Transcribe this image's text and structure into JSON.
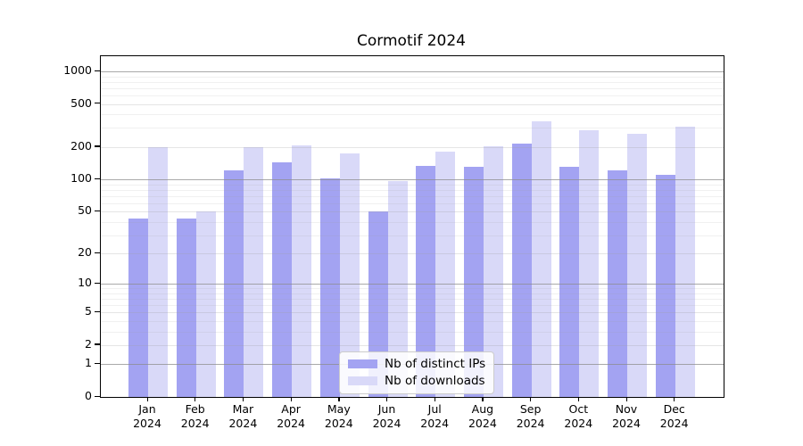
{
  "figure": {
    "title": "Cormotif 2024"
  },
  "chart_data": {
    "type": "bar",
    "title": "Cormotif 2024",
    "categories": [
      "Jan 2024",
      "Feb 2024",
      "Mar 2024",
      "Apr 2024",
      "May 2024",
      "Jun 2024",
      "Jul 2024",
      "Aug 2024",
      "Sep 2024",
      "Oct 2024",
      "Nov 2024",
      "Dec 2024"
    ],
    "series": [
      {
        "name": "Nb of distinct IPs",
        "color": "#a3a3f2",
        "values": [
          43,
          43,
          121,
          145,
          103,
          50,
          134,
          130,
          217,
          131,
          122,
          110
        ]
      },
      {
        "name": "Nb of downloads",
        "color": "#d9d9f8",
        "values": [
          200,
          50,
          200,
          208,
          175,
          97,
          181,
          204,
          348,
          287,
          263,
          309
        ]
      }
    ],
    "y_ticks": [
      0,
      1,
      2,
      5,
      10,
      20,
      50,
      100,
      200,
      500,
      1000
    ],
    "y_scale": "log1p",
    "ylim": [
      0,
      1380
    ],
    "grid": true,
    "legend_position": "lower center"
  }
}
